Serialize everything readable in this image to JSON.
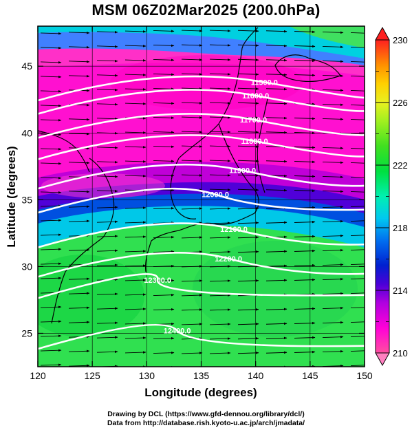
{
  "title": "MSM 06Z02Mar2025 (200.0hPa)",
  "credits": {
    "line1": "Drawing by DCL (https://www.gfd-dennou.org/library/dcl/)",
    "line2": "Data from http://database.rish.kyoto-u.ac.jp/arch/jmadata/"
  },
  "chart_data": {
    "type": "heatmap",
    "xlabel": "Longitude (degrees)",
    "ylabel": "Latitude  (degrees)",
    "xlim": [
      120,
      150
    ],
    "ylim": [
      22.5,
      48
    ],
    "xticks": [
      120,
      125,
      130,
      135,
      140,
      145,
      150
    ],
    "yticks": [
      25,
      30,
      35,
      40,
      45
    ],
    "colorbar": {
      "range": [
        210,
        230
      ],
      "tick_labels": [
        "210",
        "214",
        "218",
        "222",
        "226",
        "230"
      ],
      "colors": [
        "#ff4fa0",
        "#ff00d8",
        "#c000e0",
        "#6000d8",
        "#0020d0",
        "#0070f0",
        "#00c8f0",
        "#00f0b0",
        "#00e040",
        "#40e020",
        "#a0f020",
        "#e8f020",
        "#ffd000",
        "#ff9000",
        "#ff4000",
        "#ff1010"
      ]
    },
    "contours": [
      {
        "label": "11500.0",
        "label_lon": 140.8,
        "label_lat": 43.8
      },
      {
        "label": "11600.0",
        "label_lon": 140.0,
        "label_lat": 42.8
      },
      {
        "label": "11700.0",
        "label_lon": 139.8,
        "label_lat": 41.0
      },
      {
        "label": "11800.0",
        "label_lon": 139.9,
        "label_lat": 39.4
      },
      {
        "label": "11900.0",
        "label_lon": 138.8,
        "label_lat": 37.2
      },
      {
        "label": "12000.0",
        "label_lon": 136.3,
        "label_lat": 35.4
      },
      {
        "label": "12100.0",
        "label_lon": 138.0,
        "label_lat": 32.8
      },
      {
        "label": "12200.0",
        "label_lon": 137.5,
        "label_lat": 30.6
      },
      {
        "label": "12300.0",
        "label_lon": 131.0,
        "label_lat": 29.0
      },
      {
        "label": "12400.0",
        "label_lon": 132.8,
        "label_lat": 25.2
      }
    ],
    "grid": true
  }
}
